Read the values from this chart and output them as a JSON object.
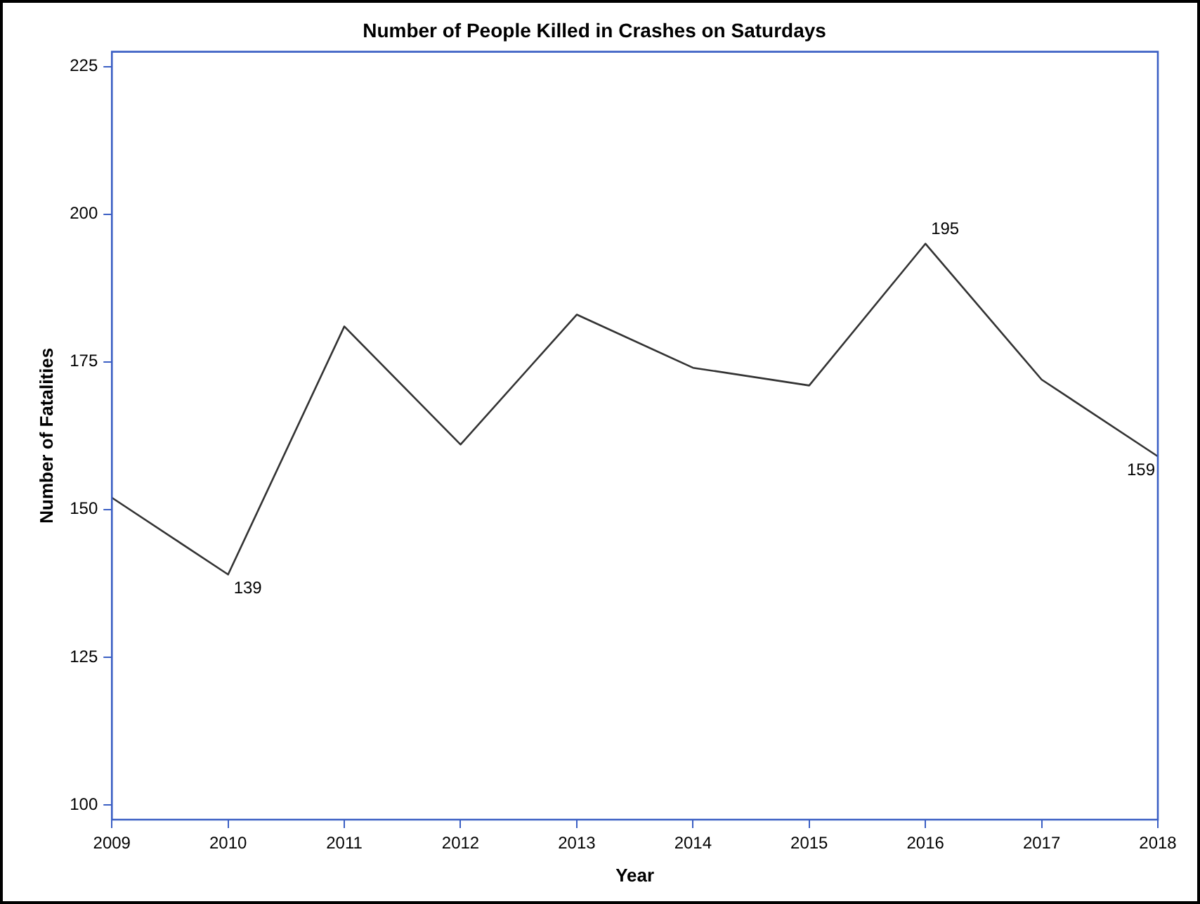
{
  "chart_data": {
    "type": "line",
    "title": "Number of People Killed in Crashes on Saturdays",
    "xlabel": "Year",
    "ylabel": "Number of Fatalities",
    "categories": [
      "2009",
      "2010",
      "2011",
      "2012",
      "2013",
      "2014",
      "2015",
      "2016",
      "2017",
      "2018"
    ],
    "series": [
      {
        "color": "#333333",
        "values": [
          152,
          139,
          181,
          161,
          183,
          174,
          171,
          195,
          172,
          159
        ],
        "value_labels": [
          null,
          "139",
          null,
          null,
          null,
          null,
          null,
          "195",
          null,
          "159"
        ]
      }
    ],
    "ylim": [
      97.5,
      227.5
    ],
    "yticks": [
      100,
      125,
      150,
      175,
      200,
      225
    ],
    "grid": false,
    "legend": false,
    "marker": "none",
    "line_style": "solid"
  }
}
